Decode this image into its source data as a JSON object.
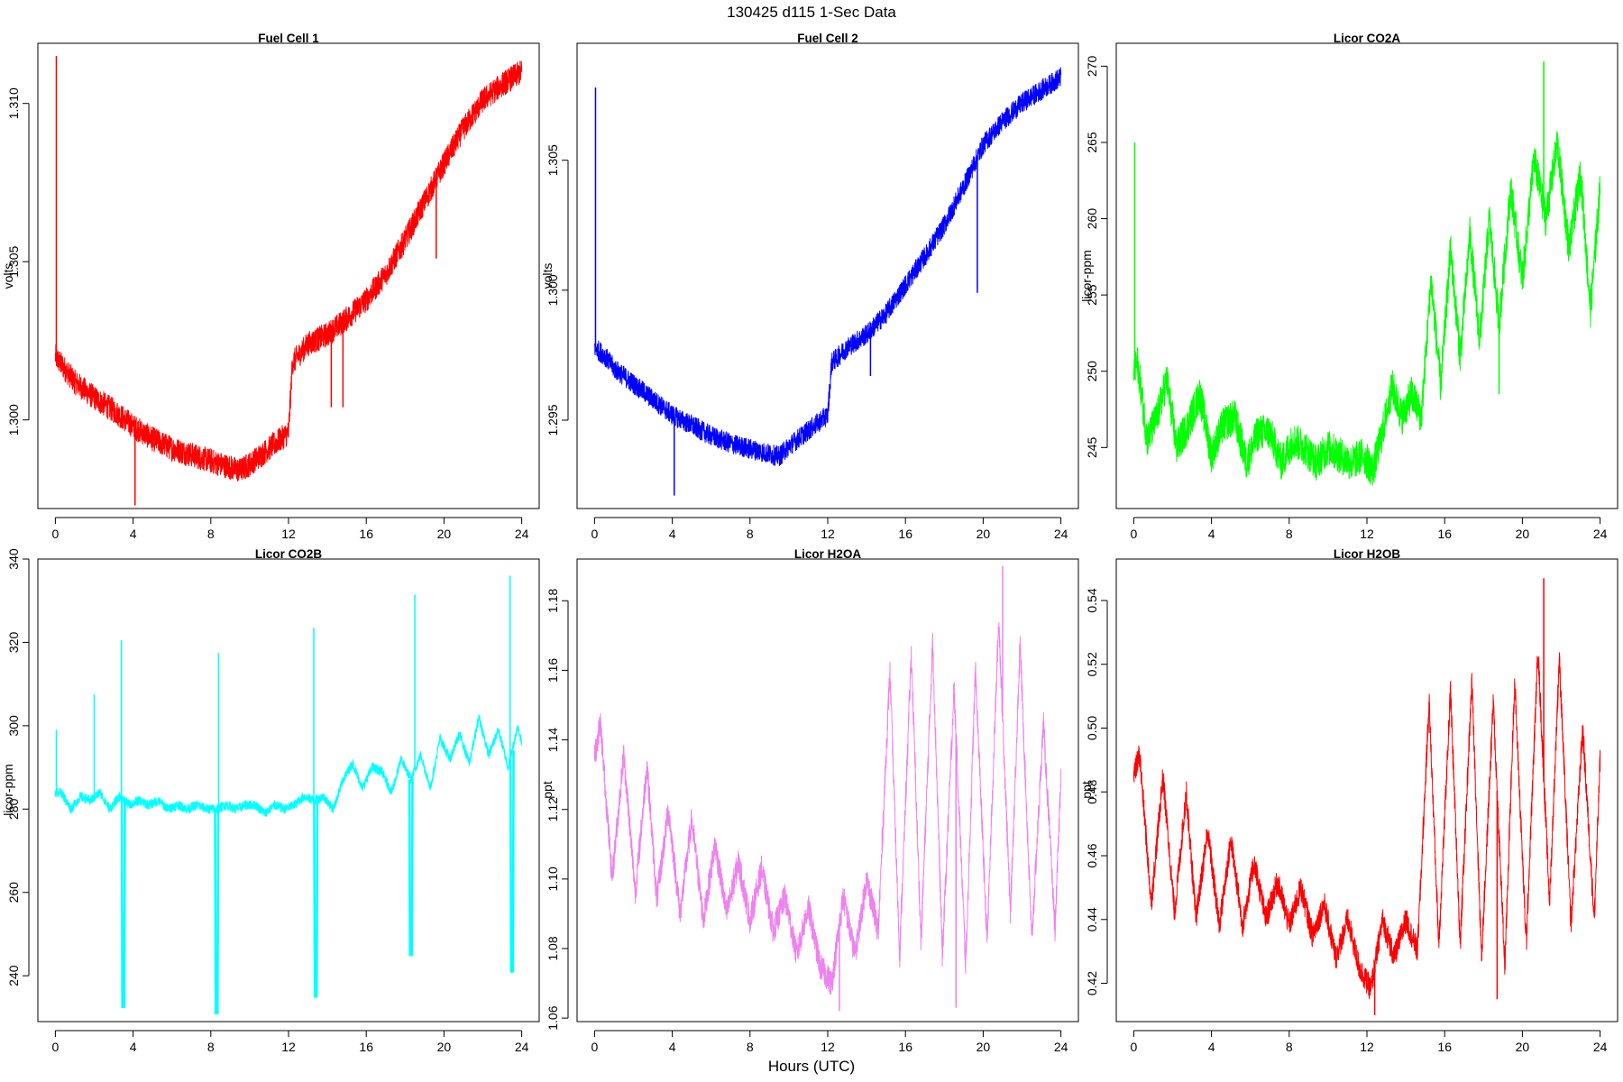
{
  "figure": {
    "title": "130425   d115   1-Sec Data",
    "xlabel": "Hours (UTC)"
  },
  "colors": {
    "fuel_cell_1": "#ff0000",
    "fuel_cell_2": "#0000ff",
    "licor_co2a": "#00ff00",
    "licor_co2b": "#00ffff",
    "licor_h2oa": "#ee82ee",
    "licor_h2ob": "#ff0000"
  },
  "chart_data": [
    {
      "type": "line",
      "title": "Fuel Cell 1",
      "ylabel": "volts",
      "color": "#ff0000",
      "xlim": [
        -0.9,
        24.9
      ],
      "ylim": [
        1.2972,
        1.3119
      ],
      "xticks": [
        0,
        4,
        8,
        12,
        16,
        20,
        24
      ],
      "xtick_labels": [
        "0",
        "4",
        "8",
        "12",
        "16",
        "20",
        "24"
      ],
      "yticks": [
        1.3,
        1.305,
        1.31
      ],
      "ytick_labels": [
        "1.300",
        "1.305",
        "1.310"
      ],
      "noise": 0.0004,
      "x": [
        0,
        0.5,
        1,
        2,
        3,
        4,
        5,
        6,
        7,
        8,
        9,
        9.5,
        10,
        11,
        12,
        12.2,
        13,
        14,
        15,
        16,
        17,
        18,
        19,
        20,
        21,
        22,
        23,
        24
      ],
      "y": [
        1.302,
        1.3016,
        1.3012,
        1.3007,
        1.3003,
        1.2998,
        1.2994,
        1.2991,
        1.2989,
        1.2987,
        1.2985,
        1.2984,
        1.2986,
        1.2991,
        1.2996,
        1.3018,
        1.3024,
        1.3027,
        1.3032,
        1.3038,
        1.3046,
        1.3057,
        1.3069,
        1.3081,
        1.3092,
        1.3101,
        1.3106,
        1.311
      ],
      "spikes": [
        {
          "x": 0.05,
          "y": 1.3115
        },
        {
          "x": 4.1,
          "y": 1.2973
        },
        {
          "x": 14.2,
          "y": 1.3004
        },
        {
          "x": 14.8,
          "y": 1.3004
        },
        {
          "x": 19.6,
          "y": 1.3051
        }
      ]
    },
    {
      "type": "line",
      "title": "Fuel Cell 2",
      "ylabel": "volts",
      "color": "#0000ff",
      "xlim": [
        -0.9,
        24.9
      ],
      "ylim": [
        1.2916,
        1.3095
      ],
      "xticks": [
        0,
        4,
        8,
        12,
        16,
        20,
        24
      ],
      "xtick_labels": [
        "0",
        "4",
        "8",
        "12",
        "16",
        "20",
        "24"
      ],
      "yticks": [
        1.295,
        1.3,
        1.305
      ],
      "ytick_labels": [
        "1.295",
        "1.300",
        "1.305"
      ],
      "noise": 0.0004,
      "x": [
        0,
        0.5,
        1,
        2,
        3,
        4,
        5,
        6,
        7,
        8,
        9,
        9.5,
        10,
        11,
        12,
        12.2,
        13,
        14,
        15,
        16,
        17,
        18,
        19,
        20,
        21,
        22,
        23,
        24
      ],
      "y": [
        1.2978,
        1.2975,
        1.297,
        1.2964,
        1.2958,
        1.2952,
        1.2948,
        1.2944,
        1.2941,
        1.2939,
        1.2937,
        1.2936,
        1.294,
        1.2946,
        1.2952,
        1.2972,
        1.2978,
        1.2983,
        1.2991,
        1.3002,
        1.3013,
        1.3025,
        1.304,
        1.3056,
        1.3065,
        1.3072,
        1.3077,
        1.3082
      ],
      "spikes": [
        {
          "x": 0.05,
          "y": 1.3078
        },
        {
          "x": 4.1,
          "y": 1.2921
        },
        {
          "x": 14.2,
          "y": 1.2967
        },
        {
          "x": 19.7,
          "y": 1.2999
        }
      ]
    },
    {
      "type": "line",
      "title": "Licor CO2A",
      "ylabel": "licor-ppm",
      "color": "#00ff00",
      "xlim": [
        -0.9,
        24.9
      ],
      "ylim": [
        241.0,
        271.5
      ],
      "xticks": [
        0,
        4,
        8,
        12,
        16,
        20,
        24
      ],
      "xtick_labels": [
        "0",
        "4",
        "8",
        "12",
        "16",
        "20",
        "24"
      ],
      "yticks": [
        245,
        250,
        255,
        260,
        265,
        270
      ],
      "ytick_labels": [
        "245",
        "250",
        "255",
        "260",
        "265",
        "270"
      ],
      "noise": 1.2,
      "x": [
        0,
        0.2,
        0.7,
        1.2,
        1.7,
        2.2,
        2.8,
        3.4,
        4,
        4.6,
        5.2,
        5.8,
        6.4,
        7,
        7.6,
        8.2,
        8.8,
        9.4,
        10,
        10.6,
        11.2,
        11.8,
        12.3,
        12.8,
        13.3,
        13.8,
        14.3,
        14.8,
        15.3,
        15.8,
        16.3,
        16.8,
        17.3,
        17.8,
        18.3,
        18.8,
        19.4,
        20,
        20.6,
        21.2,
        21.8,
        22.4,
        23,
        23.5,
        24
      ],
      "y": [
        250,
        250.5,
        245.5,
        247,
        249.5,
        245,
        246.5,
        248.5,
        244.5,
        246.5,
        247,
        244,
        246,
        246,
        244,
        245.5,
        245,
        244,
        245,
        244.5,
        244,
        244.5,
        243.5,
        246,
        249,
        247,
        248.5,
        247,
        256,
        249,
        258,
        251,
        259,
        252,
        260,
        253,
        262,
        256,
        264,
        260,
        265,
        258,
        263,
        254,
        262
      ],
      "spikes": [
        {
          "x": 0.05,
          "y": 265
        },
        {
          "x": 18.8,
          "y": 248.5
        },
        {
          "x": 21.1,
          "y": 270.3
        }
      ]
    },
    {
      "type": "line",
      "title": "Licor CO2B",
      "ylabel": "licor-ppm",
      "color": "#00ffff",
      "xlim": [
        -0.9,
        24.9
      ],
      "ylim": [
        229.0,
        340.0
      ],
      "xticks": [
        0,
        4,
        8,
        12,
        16,
        20,
        24
      ],
      "xtick_labels": [
        "0",
        "4",
        "8",
        "12",
        "16",
        "20",
        "24"
      ],
      "yticks": [
        240,
        260,
        280,
        300,
        320,
        340
      ],
      "ytick_labels": [
        "240",
        "260",
        "280",
        "300",
        "320",
        "340"
      ],
      "noise": 1.2,
      "x": [
        0,
        0.3,
        0.8,
        1.3,
        1.8,
        2.3,
        2.8,
        3.3,
        3.8,
        4.3,
        4.8,
        5.3,
        5.8,
        6.3,
        6.8,
        7.3,
        7.8,
        8.3,
        8.8,
        9.3,
        9.8,
        10.3,
        10.8,
        11.3,
        11.8,
        12.3,
        12.8,
        13.3,
        13.8,
        14.3,
        14.8,
        15.3,
        15.8,
        16.3,
        16.8,
        17.3,
        17.8,
        18.3,
        18.8,
        19.3,
        19.8,
        20.3,
        20.8,
        21.3,
        21.8,
        22.3,
        22.8,
        23.3,
        23.8,
        24
      ],
      "y": [
        284,
        284,
        280,
        283,
        282,
        284,
        280,
        283,
        281,
        282,
        281,
        282,
        280,
        281,
        280,
        281,
        280,
        280,
        281,
        280,
        281,
        281,
        279,
        281,
        280,
        281,
        283,
        282,
        283,
        280,
        287,
        291,
        285,
        290,
        289,
        284,
        292,
        287,
        293,
        285,
        297,
        292,
        298,
        291,
        302,
        293,
        299,
        290,
        300,
        296
      ],
      "excursions": [
        {
          "x": 3.5,
          "y": 232.5
        },
        {
          "x": 8.3,
          "y": 231.0
        },
        {
          "x": 13.4,
          "y": 235.0
        },
        {
          "x": 18.3,
          "y": 245.0
        },
        {
          "x": 23.5,
          "y": 241.0
        }
      ],
      "spikes": [
        {
          "x": 3.4,
          "y": 320.5
        },
        {
          "x": 8.4,
          "y": 317.5
        },
        {
          "x": 13.3,
          "y": 323.5
        },
        {
          "x": 18.5,
          "y": 331.5
        },
        {
          "x": 23.4,
          "y": 336.0
        },
        {
          "x": 2.0,
          "y": 307.5
        },
        {
          "x": 0.05,
          "y": 299.0
        }
      ]
    },
    {
      "type": "line",
      "title": "Licor H2OA",
      "ylabel": "ppt",
      "color": "#ee82ee",
      "xlim": [
        -0.9,
        24.9
      ],
      "ylim": [
        1.059,
        1.192
      ],
      "xticks": [
        0,
        4,
        8,
        12,
        16,
        20,
        24
      ],
      "xtick_labels": [
        "0",
        "4",
        "8",
        "12",
        "16",
        "20",
        "24"
      ],
      "yticks": [
        1.06,
        1.08,
        1.1,
        1.12,
        1.14,
        1.16,
        1.18
      ],
      "ytick_labels": [
        "1.06",
        "1.08",
        "1.10",
        "1.12",
        "1.14",
        "1.16",
        "1.18"
      ],
      "noise": 0.004,
      "x": [
        0,
        0.3,
        0.9,
        1.5,
        2.1,
        2.7,
        3.2,
        3.8,
        4.4,
        5.0,
        5.6,
        6.2,
        6.8,
        7.4,
        8.0,
        8.6,
        9.2,
        9.8,
        10.4,
        11.0,
        11.6,
        12.2,
        12.8,
        13.4,
        14.0,
        14.6,
        15.2,
        15.7,
        16.3,
        16.8,
        17.4,
        17.9,
        18.5,
        19.1,
        19.6,
        20.2,
        20.8,
        21.4,
        21.9,
        22.5,
        23.1,
        23.7,
        24
      ],
      "y": [
        1.135,
        1.145,
        1.1,
        1.136,
        1.096,
        1.133,
        1.094,
        1.12,
        1.09,
        1.117,
        1.088,
        1.11,
        1.09,
        1.105,
        1.088,
        1.103,
        1.085,
        1.095,
        1.078,
        1.092,
        1.075,
        1.07,
        1.095,
        1.078,
        1.1,
        1.085,
        1.16,
        1.078,
        1.165,
        1.082,
        1.168,
        1.078,
        1.155,
        1.075,
        1.16,
        1.082,
        1.175,
        1.09,
        1.168,
        1.082,
        1.145,
        1.085,
        1.13
      ],
      "spikes": [
        {
          "x": 21.0,
          "y": 1.19
        },
        {
          "x": 12.6,
          "y": 1.062
        },
        {
          "x": 18.6,
          "y": 1.063
        }
      ]
    },
    {
      "type": "line",
      "title": "Licor H2OB",
      "ylabel": "ppt",
      "color": "#ff0000",
      "xlim": [
        -0.9,
        24.9
      ],
      "ylim": [
        0.408,
        0.553
      ],
      "xticks": [
        0,
        4,
        8,
        12,
        16,
        20,
        24
      ],
      "xtick_labels": [
        "0",
        "4",
        "8",
        "12",
        "16",
        "20",
        "24"
      ],
      "yticks": [
        0.42,
        0.44,
        0.46,
        0.48,
        0.5,
        0.52,
        0.54
      ],
      "ytick_labels": [
        "0.42",
        "0.44",
        "0.46",
        "0.48",
        "0.50",
        "0.52",
        "0.54"
      ],
      "noise": 0.004,
      "x": [
        0,
        0.3,
        0.9,
        1.5,
        2.1,
        2.7,
        3.2,
        3.8,
        4.4,
        5.0,
        5.6,
        6.2,
        6.8,
        7.4,
        8.0,
        8.6,
        9.2,
        9.8,
        10.4,
        11.0,
        11.6,
        12.2,
        12.8,
        13.4,
        14.0,
        14.6,
        15.2,
        15.7,
        16.3,
        16.8,
        17.4,
        17.9,
        18.5,
        19.1,
        19.6,
        20.2,
        20.8,
        21.4,
        21.9,
        22.5,
        23.1,
        23.7,
        24
      ],
      "y": [
        0.485,
        0.492,
        0.445,
        0.485,
        0.442,
        0.48,
        0.44,
        0.468,
        0.438,
        0.465,
        0.438,
        0.458,
        0.44,
        0.452,
        0.438,
        0.45,
        0.435,
        0.445,
        0.428,
        0.44,
        0.425,
        0.418,
        0.44,
        0.428,
        0.44,
        0.43,
        0.508,
        0.432,
        0.512,
        0.432,
        0.515,
        0.428,
        0.508,
        0.425,
        0.515,
        0.432,
        0.525,
        0.445,
        0.522,
        0.438,
        0.5,
        0.44,
        0.49
      ],
      "spikes": [
        {
          "x": 21.1,
          "y": 0.547
        },
        {
          "x": 12.4,
          "y": 0.41
        },
        {
          "x": 18.7,
          "y": 0.415
        }
      ]
    }
  ]
}
